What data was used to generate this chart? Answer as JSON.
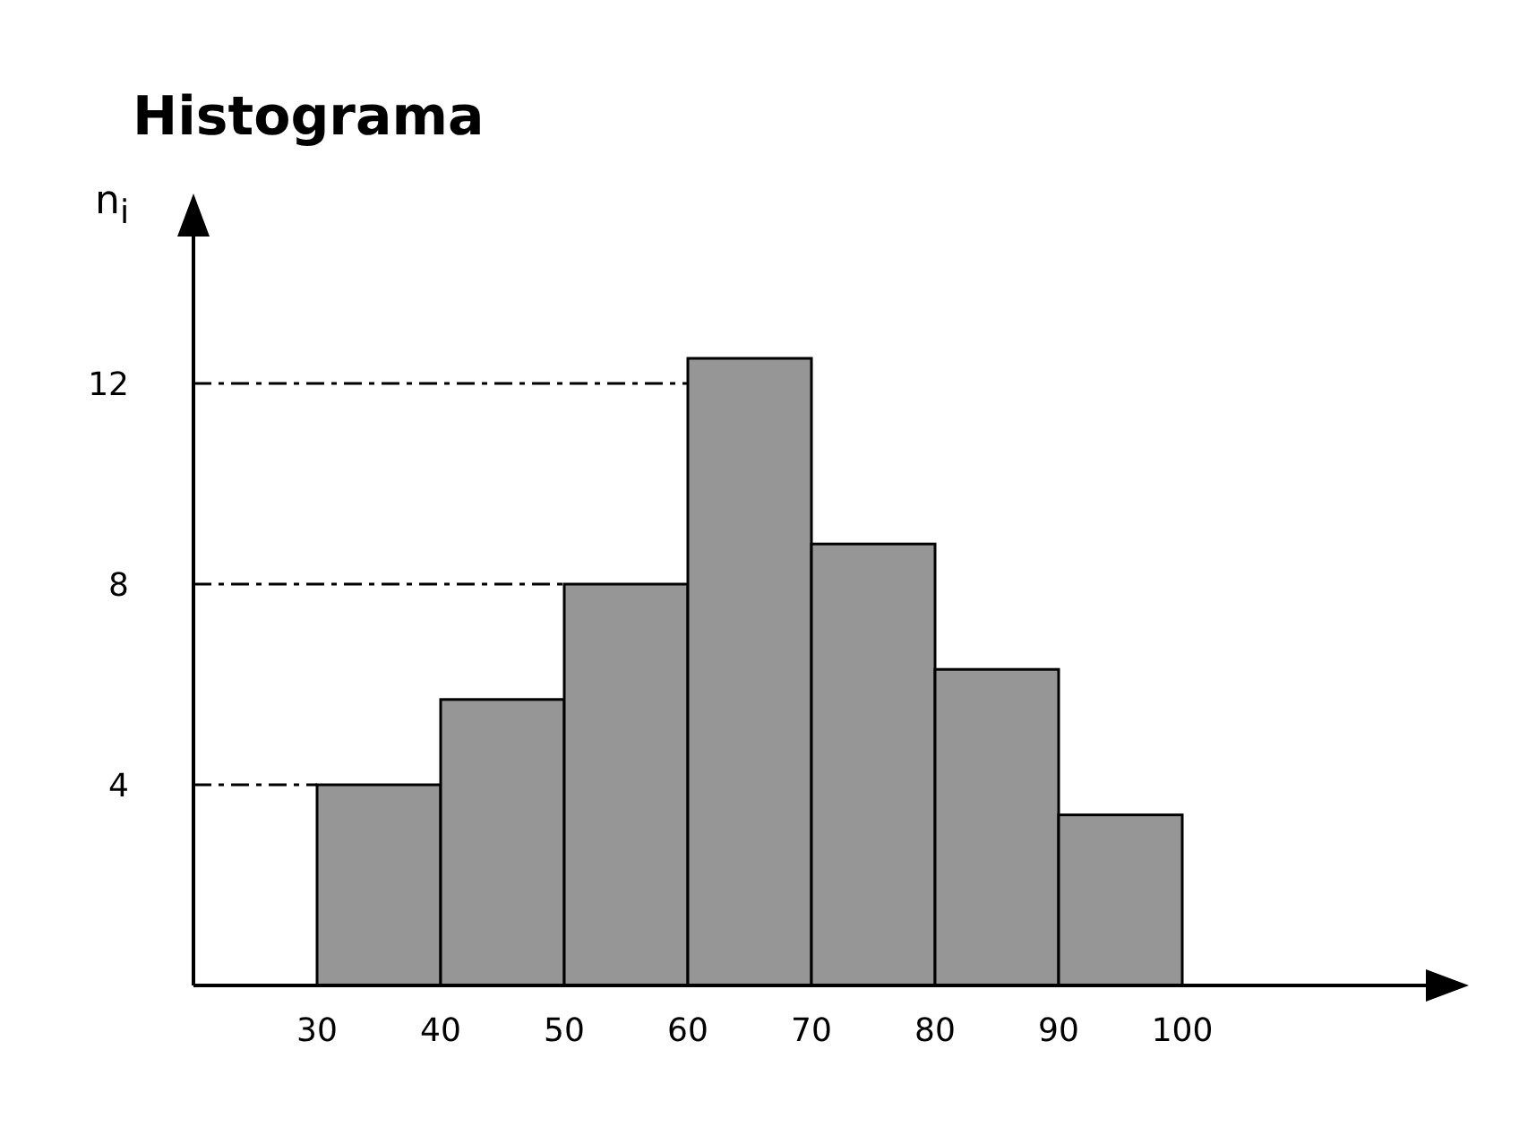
{
  "chart_data": {
    "type": "histogram",
    "title": "Histograma",
    "ylabel": "n$_{i}$",
    "bins": [
      30,
      40,
      50,
      60,
      70,
      80,
      90,
      100
    ],
    "values": [
      4,
      5.7,
      8,
      12.5,
      8.8,
      6.3,
      3.4
    ],
    "color": "#969696",
    "xlim": [
      20,
      120
    ],
    "xticks": [
      30,
      40,
      50,
      60,
      70,
      80,
      90,
      100
    ],
    "ylim": [
      0,
      15
    ],
    "yticks": [
      4,
      8,
      12
    ],
    "ref_lines": [
      {
        "axis": "y",
        "value": 4,
        "color": "#000000",
        "line_style": "dashed"
      },
      {
        "axis": "y",
        "value": 8,
        "color": "#000000",
        "line_style": "dashed"
      },
      {
        "axis": "y",
        "value": 12,
        "color": "#000000",
        "line_style": "dashed"
      }
    ],
    "grid": false,
    "legend": false
  }
}
